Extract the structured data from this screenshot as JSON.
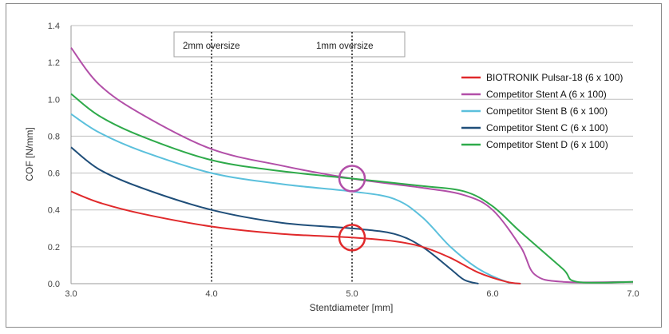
{
  "chart_data": {
    "type": "line",
    "title": "",
    "xlabel": "Stentdiameter [mm]",
    "ylabel": "COF [N/mm]",
    "xlim": [
      3.0,
      7.0
    ],
    "ylim": [
      0.0,
      1.4
    ],
    "x_ticks": [
      "3.0",
      "4.0",
      "5.0",
      "6.0",
      "7.0"
    ],
    "y_ticks": [
      "0.0",
      "0.2",
      "0.4",
      "0.6",
      "0.8",
      "1.0",
      "1.2",
      "1.4"
    ],
    "grid": "horizontal",
    "legend_position": "right",
    "annotations": [
      {
        "label": "2mm oversize",
        "x": 4.0
      },
      {
        "label": "1mm oversize",
        "x": 5.0
      }
    ],
    "markers": [
      {
        "name": "circle-purple",
        "x": 5.0,
        "y": 0.57,
        "color": "#b24fa8"
      },
      {
        "name": "circle-red",
        "x": 5.0,
        "y": 0.25,
        "color": "#e0292b"
      }
    ],
    "series": [
      {
        "name": "BIOTRONIK Pulsar-18 (6 x 100)",
        "color": "#e0292b",
        "x": [
          3.0,
          3.2,
          3.5,
          4.0,
          4.5,
          5.0,
          5.3,
          5.5,
          5.7,
          5.9,
          6.1,
          6.2
        ],
        "y": [
          0.5,
          0.44,
          0.38,
          0.31,
          0.27,
          0.25,
          0.23,
          0.2,
          0.14,
          0.06,
          0.01,
          0.0
        ]
      },
      {
        "name": "Competitor Stent A (6 x 100)",
        "color": "#b24fa8",
        "x": [
          3.0,
          3.2,
          3.5,
          4.0,
          4.5,
          5.0,
          5.5,
          5.8,
          6.0,
          6.2,
          6.3,
          6.5,
          7.0
        ],
        "y": [
          1.28,
          1.08,
          0.92,
          0.73,
          0.64,
          0.57,
          0.52,
          0.48,
          0.4,
          0.2,
          0.05,
          0.01,
          0.01
        ]
      },
      {
        "name": "Competitor Stent B (6 x 100)",
        "color": "#5bc0dc",
        "x": [
          3.0,
          3.2,
          3.5,
          4.0,
          4.5,
          5.0,
          5.3,
          5.5,
          5.7,
          5.9,
          6.1,
          6.2
        ],
        "y": [
          0.92,
          0.82,
          0.72,
          0.6,
          0.54,
          0.5,
          0.46,
          0.36,
          0.2,
          0.08,
          0.01,
          0.0
        ]
      },
      {
        "name": "Competitor Stent C (6 x 100)",
        "color": "#1f4e79",
        "x": [
          3.0,
          3.2,
          3.5,
          4.0,
          4.5,
          5.0,
          5.3,
          5.5,
          5.7,
          5.8,
          5.9
        ],
        "y": [
          0.74,
          0.62,
          0.52,
          0.4,
          0.33,
          0.3,
          0.27,
          0.2,
          0.08,
          0.02,
          0.0
        ]
      },
      {
        "name": "Competitor Stent D (6 x 100)",
        "color": "#2eaa4a",
        "x": [
          3.0,
          3.2,
          3.5,
          4.0,
          4.5,
          5.0,
          5.5,
          5.8,
          6.0,
          6.2,
          6.5,
          6.6,
          7.0
        ],
        "y": [
          1.03,
          0.91,
          0.8,
          0.67,
          0.61,
          0.57,
          0.53,
          0.5,
          0.42,
          0.28,
          0.08,
          0.01,
          0.01
        ]
      }
    ]
  }
}
